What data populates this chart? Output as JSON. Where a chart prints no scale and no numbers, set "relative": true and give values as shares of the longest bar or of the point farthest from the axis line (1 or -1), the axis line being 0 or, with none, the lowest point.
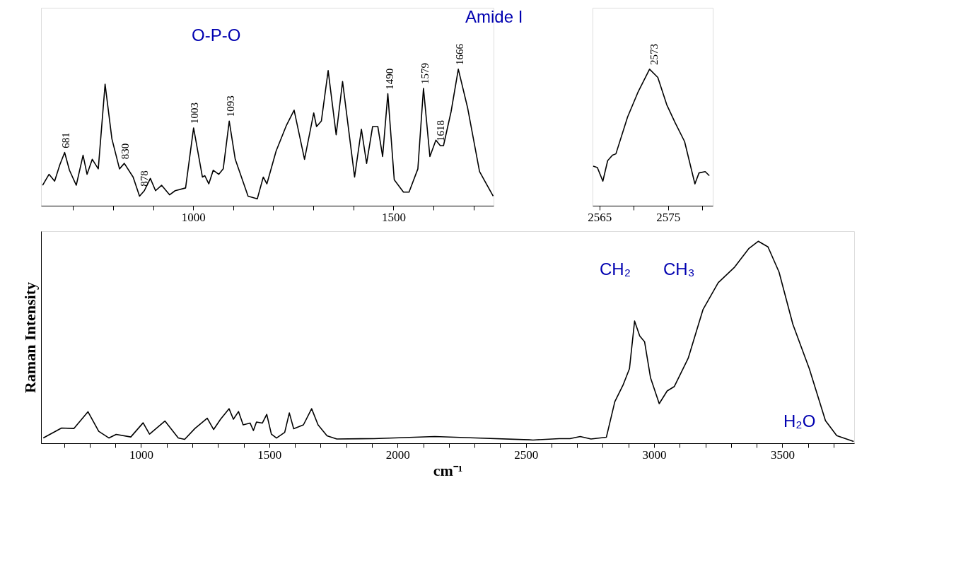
{
  "chart_data": [
    {
      "type": "line",
      "relative": true,
      "xlim": [
        620,
        1750
      ],
      "xticks": [
        {
          "value": 700,
          "label": null
        },
        {
          "value": 800,
          "label": null
        },
        {
          "value": 900,
          "label": null
        },
        1000,
        {
          "value": 1100,
          "label": null
        },
        {
          "value": 1200,
          "label": null
        },
        {
          "value": 1300,
          "label": null
        },
        {
          "value": 1400,
          "label": null
        },
        1500,
        {
          "value": 1600,
          "label": null
        },
        {
          "value": 1700,
          "label": null
        }
      ],
      "x": [
        624,
        640,
        654,
        667,
        679,
        691,
        708,
        725,
        735,
        748,
        763,
        780,
        797,
        816,
        828,
        850,
        866,
        878,
        893,
        906,
        921,
        941,
        955,
        981,
        1001,
        1023,
        1029,
        1039,
        1050,
        1064,
        1075,
        1090,
        1105,
        1124,
        1137,
        1160,
        1175,
        1184,
        1207,
        1233,
        1252,
        1278,
        1301,
        1308,
        1320,
        1337,
        1357,
        1373,
        1403,
        1420,
        1433,
        1448,
        1461,
        1473,
        1486,
        1502,
        1525,
        1539,
        1561,
        1575,
        1591,
        1606,
        1617,
        1625,
        1644,
        1662,
        1685,
        1715,
        1749
      ],
      "series": [
        {
          "color": "#000000",
          "values": [
            0.15,
            0.23,
            0.18,
            0.3,
            0.39,
            0.26,
            0.15,
            0.37,
            0.23,
            0.34,
            0.27,
            0.89,
            0.49,
            0.27,
            0.31,
            0.21,
            0.07,
            0.11,
            0.2,
            0.11,
            0.15,
            0.08,
            0.11,
            0.13,
            0.57,
            0.21,
            0.22,
            0.16,
            0.26,
            0.23,
            0.27,
            0.62,
            0.34,
            0.18,
            0.07,
            0.05,
            0.21,
            0.16,
            0.4,
            0.59,
            0.7,
            0.34,
            0.68,
            0.58,
            0.62,
            0.99,
            0.52,
            0.91,
            0.21,
            0.56,
            0.31,
            0.58,
            0.58,
            0.36,
            0.82,
            0.19,
            0.1,
            0.1,
            0.27,
            0.86,
            0.36,
            0.48,
            0.44,
            0.44,
            0.69,
            1.0,
            0.72,
            0.25,
            0.07
          ]
        }
      ],
      "annotations": [
        {
          "text": "681",
          "x": 681,
          "y": 0.39
        },
        {
          "text": "830",
          "x": 830,
          "y": 0.31
        },
        {
          "text": "878",
          "x": 878,
          "y": 0.11
        },
        {
          "text": "1003",
          "x": 1003,
          "y": 0.57
        },
        {
          "text": "1093",
          "x": 1093,
          "y": 0.62
        },
        {
          "text": "1490",
          "x": 1490,
          "y": 0.82
        },
        {
          "text": "1579",
          "x": 1579,
          "y": 0.86
        },
        {
          "text": "1618",
          "x": 1618,
          "y": 0.44
        },
        {
          "text": "1666",
          "x": 1666,
          "y": 1.0
        },
        "O-P-O",
        "Amide I"
      ]
    },
    {
      "type": "line",
      "relative": true,
      "xlim": [
        2564,
        2581.5
      ],
      "xticks": [
        2565,
        {
          "value": 2570,
          "label": null
        },
        2575,
        {
          "value": 2580,
          "label": null
        }
      ],
      "x": [
        2564.1,
        2564.7,
        2565.5,
        2566.2,
        2566.9,
        2567.4,
        2569.1,
        2570.6,
        2572.3,
        2573.5,
        2574.8,
        2576.0,
        2577.4,
        2578.9,
        2579.5,
        2580.4,
        2581.0
      ],
      "series": [
        {
          "color": "#000000",
          "values": [
            0.29,
            0.28,
            0.18,
            0.33,
            0.37,
            0.38,
            0.65,
            0.83,
            1.0,
            0.94,
            0.74,
            0.61,
            0.47,
            0.16,
            0.24,
            0.25,
            0.22
          ]
        }
      ],
      "annotations": [
        {
          "text": "2573",
          "x": 2573,
          "y": 1.0
        }
      ]
    },
    {
      "type": "line",
      "relative": true,
      "xlim": [
        610,
        3780
      ],
      "xlabel": "cm⁻¹",
      "ylabel": "Raman Intensity",
      "xticks": [
        {
          "value": 700,
          "label": null
        },
        {
          "value": 800,
          "label": null
        },
        {
          "value": 900,
          "label": null
        },
        1000,
        {
          "value": 1100,
          "label": null
        },
        {
          "value": 1200,
          "label": null
        },
        {
          "value": 1300,
          "label": null
        },
        {
          "value": 1400,
          "label": null
        },
        1500,
        {
          "value": 1600,
          "label": null
        },
        {
          "value": 1700,
          "label": null
        },
        {
          "value": 1800,
          "label": null
        },
        {
          "value": 1900,
          "label": null
        },
        2000,
        {
          "value": 2100,
          "label": null
        },
        {
          "value": 2200,
          "label": null
        },
        {
          "value": 2300,
          "label": null
        },
        {
          "value": 2400,
          "label": null
        },
        2500,
        {
          "value": 2600,
          "label": null
        },
        {
          "value": 2700,
          "label": null
        },
        {
          "value": 2800,
          "label": null
        },
        {
          "value": 2900,
          "label": null
        },
        3000,
        {
          "value": 3100,
          "label": null
        },
        {
          "value": 3200,
          "label": null
        },
        {
          "value": 3300,
          "label": null
        },
        {
          "value": 3400,
          "label": null
        },
        3500,
        {
          "value": 3600,
          "label": null
        },
        {
          "value": 3700,
          "label": null
        }
      ],
      "x": [
        619,
        690,
        738,
        793,
        835,
        875,
        903,
        960,
        1008,
        1033,
        1093,
        1145,
        1170,
        1210,
        1258,
        1283,
        1310,
        1343,
        1360,
        1380,
        1398,
        1425,
        1438,
        1450,
        1473,
        1490,
        1508,
        1528,
        1560,
        1578,
        1595,
        1633,
        1665,
        1690,
        1725,
        1763,
        1908,
        2145,
        2303,
        2513,
        2528,
        2630,
        2672,
        2712,
        2754,
        2814,
        2847,
        2879,
        2904,
        2924,
        2944,
        2963,
        2986,
        3020,
        3051,
        3079,
        3133,
        3191,
        3250,
        3314,
        3370,
        3406,
        3444,
        3487,
        3541,
        3605,
        3668,
        3712,
        3778
      ],
      "series": [
        {
          "color": "#000000",
          "values": [
            0.026,
            0.075,
            0.073,
            0.156,
            0.059,
            0.026,
            0.044,
            0.031,
            0.101,
            0.045,
            0.11,
            0.026,
            0.019,
            0.073,
            0.124,
            0.068,
            0.119,
            0.171,
            0.119,
            0.157,
            0.091,
            0.1,
            0.063,
            0.105,
            0.1,
            0.143,
            0.045,
            0.026,
            0.054,
            0.15,
            0.072,
            0.091,
            0.171,
            0.091,
            0.037,
            0.021,
            0.023,
            0.033,
            0.026,
            0.017,
            0.016,
            0.023,
            0.023,
            0.033,
            0.021,
            0.03,
            0.206,
            0.288,
            0.369,
            0.605,
            0.531,
            0.502,
            0.325,
            0.196,
            0.259,
            0.281,
            0.421,
            0.663,
            0.795,
            0.872,
            0.965,
            1.0,
            0.972,
            0.848,
            0.589,
            0.369,
            0.112,
            0.038,
            0.009
          ]
        }
      ],
      "annotations": [
        "CH₂",
        "CH₃",
        "H₂O"
      ]
    }
  ]
}
